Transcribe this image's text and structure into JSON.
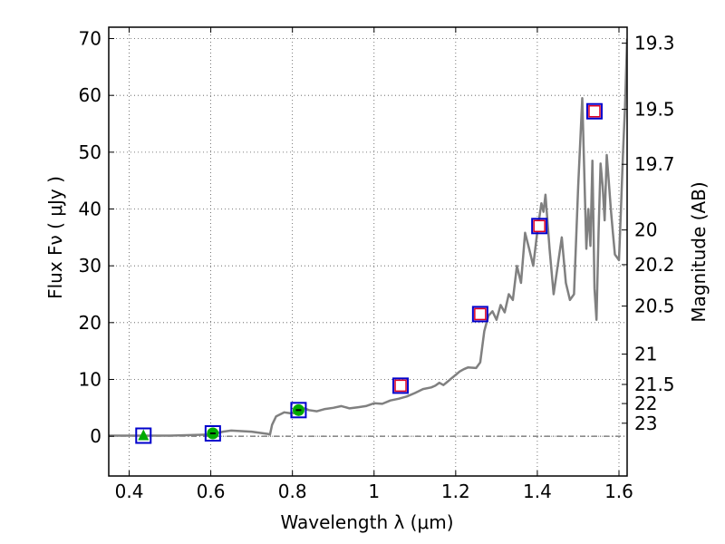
{
  "chart_data": {
    "type": "scatter",
    "xlabel": "Wavelength  λ (μm)",
    "ylabel": "Flux  Fν  ( μJy )",
    "y2label": "Magnitude (AB)",
    "xlim": [
      0.35,
      1.62
    ],
    "ylim": [
      -7,
      72
    ],
    "grid": true,
    "x_ticks": [
      {
        "value": 0.4,
        "label": "0.4"
      },
      {
        "value": 0.6,
        "label": "0.6"
      },
      {
        "value": 0.8,
        "label": "0.8"
      },
      {
        "value": 1.0,
        "label": "1"
      },
      {
        "value": 1.2,
        "label": "1.2"
      },
      {
        "value": 1.4,
        "label": "1.4"
      },
      {
        "value": 1.6,
        "label": "1.6"
      }
    ],
    "y_ticks": [
      {
        "value": 0,
        "label": "0"
      },
      {
        "value": 10,
        "label": "10"
      },
      {
        "value": 20,
        "label": "20"
      },
      {
        "value": 30,
        "label": "30"
      },
      {
        "value": 40,
        "label": "40"
      },
      {
        "value": 50,
        "label": "50"
      },
      {
        "value": 60,
        "label": "60"
      },
      {
        "value": 70,
        "label": "70"
      }
    ],
    "mag_ticks": [
      {
        "value": 19.3,
        "label": "19.3"
      },
      {
        "value": 19.5,
        "label": "19.5"
      },
      {
        "value": 19.7,
        "label": "19.7"
      },
      {
        "value": 20,
        "label": "20"
      },
      {
        "value": 20.2,
        "label": "20.2"
      },
      {
        "value": 20.5,
        "label": "20.5"
      },
      {
        "value": 21,
        "label": "21"
      },
      {
        "value": 21.5,
        "label": "21.5"
      },
      {
        "value": 22,
        "label": "22"
      },
      {
        "value": 23,
        "label": "23"
      }
    ],
    "sed_model": {
      "color": "#808080",
      "x": [
        0.35,
        0.4,
        0.45,
        0.5,
        0.55,
        0.6,
        0.63,
        0.65,
        0.7,
        0.72,
        0.74,
        0.745,
        0.75,
        0.76,
        0.78,
        0.8,
        0.82,
        0.83,
        0.84,
        0.86,
        0.88,
        0.9,
        0.92,
        0.94,
        0.96,
        0.98,
        1.0,
        1.02,
        1.04,
        1.06,
        1.08,
        1.1,
        1.12,
        1.14,
        1.15,
        1.16,
        1.17,
        1.18,
        1.19,
        1.2,
        1.21,
        1.22,
        1.23,
        1.25,
        1.26,
        1.27,
        1.28,
        1.29,
        1.3,
        1.31,
        1.32,
        1.33,
        1.34,
        1.35,
        1.36,
        1.37,
        1.38,
        1.39,
        1.4,
        1.41,
        1.415,
        1.42,
        1.43,
        1.44,
        1.45,
        1.46,
        1.47,
        1.48,
        1.49,
        1.5,
        1.51,
        1.52,
        1.525,
        1.53,
        1.535,
        1.54,
        1.545,
        1.55,
        1.555,
        1.56,
        1.565,
        1.57,
        1.575,
        1.58,
        1.585,
        1.59,
        1.6,
        1.605,
        1.61,
        1.615,
        1.62
      ],
      "y": [
        0.1,
        0.1,
        0.1,
        0.1,
        0.2,
        0.3,
        0.8,
        1.0,
        0.8,
        0.6,
        0.4,
        0.3,
        2.0,
        3.5,
        4.2,
        4.0,
        4.6,
        4.9,
        4.6,
        4.4,
        4.8,
        5.0,
        5.3,
        4.9,
        5.1,
        5.3,
        5.8,
        5.7,
        6.3,
        6.6,
        7.0,
        7.6,
        8.3,
        8.6,
        8.9,
        9.4,
        9.0,
        9.6,
        10.2,
        10.8,
        11.4,
        11.8,
        12.1,
        12.0,
        13.0,
        18.5,
        21.2,
        22.0,
        20.5,
        23.1,
        21.8,
        25.0,
        24.0,
        30.0,
        27.0,
        35.8,
        33.0,
        30.0,
        36.0,
        41.0,
        39.5,
        42.5,
        33.0,
        25.0,
        30.0,
        35.0,
        27.0,
        24.0,
        25.0,
        44.0,
        59.5,
        33.0,
        40.0,
        33.5,
        48.5,
        26.0,
        20.5,
        36.0,
        48.0,
        44.0,
        38.0,
        49.5,
        45.0,
        40.0,
        36.0,
        32.0,
        31.0,
        40.0,
        50.0,
        58.0,
        70.0
      ]
    },
    "photometry": {
      "square_color": "#0000cc",
      "inner_square_color": "#dd0022",
      "marker_color": "#00aa00",
      "points": [
        {
          "x": 0.435,
          "y": 0.1,
          "marker": "triangle"
        },
        {
          "x": 0.605,
          "y": 0.5,
          "marker": "circle"
        },
        {
          "x": 0.815,
          "y": 4.6,
          "marker": "circle"
        },
        {
          "x": 1.065,
          "y": 8.9,
          "marker": "square"
        },
        {
          "x": 1.26,
          "y": 21.5,
          "marker": "square"
        },
        {
          "x": 1.405,
          "y": 37.0,
          "marker": "square"
        },
        {
          "x": 1.54,
          "y": 57.2,
          "marker": "square"
        }
      ]
    }
  }
}
